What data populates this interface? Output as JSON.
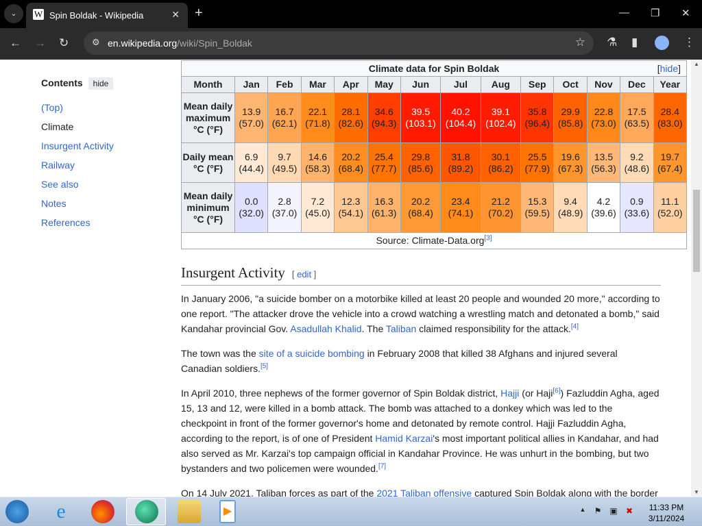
{
  "browser": {
    "tab_title": "Spin Boldak - Wikipedia",
    "url_host": "en.wikipedia.org",
    "url_path": "/wiki/Spin_Boldak"
  },
  "toc": {
    "heading": "Contents",
    "hide": "hide",
    "items": [
      "(Top)",
      "Climate",
      "Insurgent Activity",
      "Railway",
      "See also",
      "Notes",
      "References"
    ]
  },
  "climate": {
    "caption": "Climate data for Spin Boldak",
    "hide": "hide",
    "header": [
      "Month",
      "Jan",
      "Feb",
      "Mar",
      "Apr",
      "May",
      "Jun",
      "Jul",
      "Aug",
      "Sep",
      "Oct",
      "Nov",
      "Dec",
      "Year"
    ],
    "rows": [
      {
        "label": "Mean daily maximum °C (°F)",
        "c": [
          "13.9",
          "16.7",
          "22.1",
          "28.1",
          "34.6",
          "39.5",
          "40.2",
          "39.1",
          "35.8",
          "29.9",
          "22.8",
          "17.5",
          "28.4"
        ],
        "f": [
          "(57.0)",
          "(62.1)",
          "(71.8)",
          "(82.6)",
          "(94.3)",
          "(103.1)",
          "(104.4)",
          "(102.4)",
          "(96.4)",
          "(85.8)",
          "(73.0)",
          "(63.5)",
          "(83.0)"
        ],
        "colors": [
          "#ffb672",
          "#ffa552",
          "#ff8b1c",
          "#ff6c00",
          "#ff3e00",
          "#ff1a00",
          "#ff1200",
          "#ff1c00",
          "#ff3400",
          "#ff6200",
          "#ff8818",
          "#ffa95c",
          "#ff6600"
        ]
      },
      {
        "label": "Daily mean °C (°F)",
        "c": [
          "6.9",
          "9.7",
          "14.6",
          "20.2",
          "25.4",
          "29.8",
          "31.8",
          "30.1",
          "25.5",
          "19.6",
          "13.5",
          "9.2",
          "19.7"
        ],
        "f": [
          "(44.4)",
          "(49.5)",
          "(58.3)",
          "(68.4)",
          "(77.7)",
          "(85.6)",
          "(89.2)",
          "(86.2)",
          "(77.9)",
          "(67.3)",
          "(56.3)",
          "(48.6)",
          "(67.4)"
        ],
        "colors": [
          "#ffe9d4",
          "#ffd9b3",
          "#ffb36c",
          "#ff8e20",
          "#ff7300",
          "#ff6200",
          "#ff5600",
          "#ff6000",
          "#ff7300",
          "#ff972e",
          "#ffb878",
          "#ffdab4",
          "#ff972e"
        ]
      },
      {
        "label": "Mean daily minimum °C (°F)",
        "c": [
          "0.0",
          "2.8",
          "7.2",
          "12.3",
          "16.3",
          "20.2",
          "23.4",
          "21.2",
          "15.3",
          "9.4",
          "4.2",
          "0.9",
          "11.1"
        ],
        "f": [
          "(32.0)",
          "(37.0)",
          "(45.0)",
          "(54.1)",
          "(61.3)",
          "(68.4)",
          "(74.1)",
          "(70.2)",
          "(59.5)",
          "(48.9)",
          "(39.6)",
          "(33.6)",
          "(52.0)"
        ],
        "colors": [
          "#e0e0ff",
          "#f4f4ff",
          "#ffe9d4",
          "#ffc792",
          "#ffb26a",
          "#ff9a36",
          "#ff8c1a",
          "#ff9530",
          "#ffb878",
          "#ffdbb8",
          "#ffffff",
          "#e6e6ff",
          "#ffd1a2"
        ]
      }
    ],
    "source": "Source: Climate-Data.org",
    "source_ref": "[3]"
  },
  "section": {
    "title": "Insurgent Activity",
    "edit": "edit"
  },
  "paras": {
    "p1a": "In January 2006, \"a suicide bomber on a motorbike killed at least 20 people and wounded 20 more,\" according to one report. \"The attacker drove the vehicle into a crowd watching a wrestling match and detonated a bomb,\" said Kandahar provincial Gov. ",
    "p1l1": "Asadullah Khalid",
    "p1b": ". The ",
    "p1l2": "Taliban",
    "p1c": " claimed responsibility for the attack.",
    "p1r": "[4]",
    "p2a": "The town was the ",
    "p2l": "site of a suicide bombing",
    "p2b": " in February 2008 that killed 38 Afghans and injured several Canadian soldiers.",
    "p2r": "[5]",
    "p3a": "In April 2010, three nephews of the former governor of Spin Boldak district, ",
    "p3l1": "Hajji",
    "p3b": " (or Haji",
    "p3r1": "[6]",
    "p3c": ") Fazluddin Agha, aged 15, 13 and 12, were killed in a bomb attack. The bomb was attached to a donkey which was led to the checkpoint in front of the former governor's home and detonated by remote control. Hajji Fazluddin Agha, according to the report, is of one of President ",
    "p3l2": "Hamid Karzai",
    "p3d": "'s most important political allies in Kandahar, and had also served as Mr. Karzai's top campaign official in Kandahar Province. He was unhurt in the bombing, but two bystanders and two policemen were wounded.",
    "p3r2": "[7]",
    "p4a": "On 14 July 2021, Taliban forces as part of the ",
    "p4l": "2021 Taliban offensive",
    "p4b": " captured Spin Boldak along with the border"
  },
  "taskbar": {
    "time": "11:33 PM",
    "date": "3/11/2024"
  }
}
